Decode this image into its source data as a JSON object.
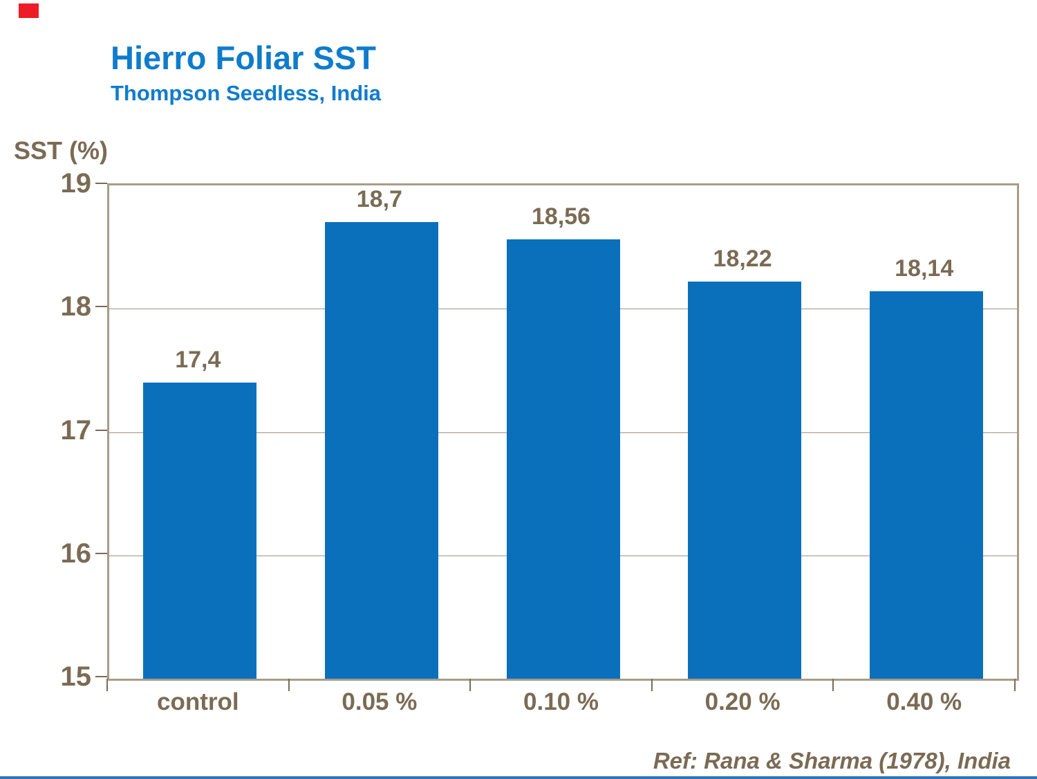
{
  "slide": {
    "background": "#ffffff",
    "accent_color": "#ee1c25",
    "footer_line_color": "#2e74b5"
  },
  "header": {
    "title": "Hierro Foliar SST",
    "subtitle": "Thompson Seedless, India",
    "title_color": "#0f7ccb"
  },
  "reference": "Ref: Rana & Sharma (1978), India",
  "chart_data": {
    "type": "bar",
    "title": "Hierro Foliar SST",
    "subtitle": "Thompson Seedless, India",
    "ylabel": "SST (%)",
    "xlabel": "",
    "categories": [
      "control",
      "0.05 %",
      "0.10 %",
      "0.20 %",
      "0.40 %"
    ],
    "values": [
      17.4,
      18.7,
      18.56,
      18.22,
      18.14
    ],
    "value_labels": [
      "17,4",
      "18,7",
      "18,56",
      "18,22",
      "18,14"
    ],
    "ylim": [
      15,
      19
    ],
    "yticks": [
      15,
      16,
      17,
      18,
      19
    ],
    "grid": "horizontal",
    "legend": "none",
    "bar_color": "#0a70bc",
    "text_color": "#7b6b54",
    "frame_color": "#a89b89",
    "gridline_color": "#a2937e"
  }
}
